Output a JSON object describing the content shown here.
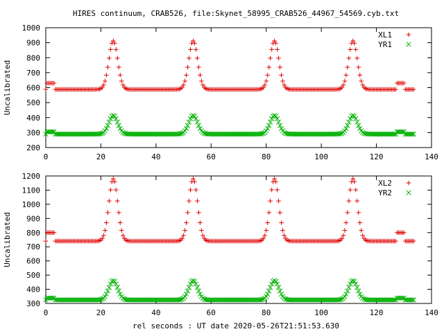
{
  "title": "HIRES continuum, CRAB526, file:Skynet_58995_CRAB526_44967_54569.cyb.txt",
  "xlabel": "rel seconds : UT date 2020-05-26T21:51:53.630",
  "colors": {
    "series1": "#e00000",
    "series2": "#00b000",
    "axis": "#000000"
  },
  "chart_data": [
    {
      "type": "scatter",
      "title": "HIRES continuum, CRAB526, file:Skynet_58995_CRAB526_44967_54569.cyb.txt",
      "ylabel": "Uncalibrated",
      "xlim": [
        0,
        140
      ],
      "ylim": [
        200,
        1000
      ],
      "xticks": [
        0,
        20,
        40,
        60,
        80,
        100,
        120,
        140
      ],
      "yticks": [
        200,
        300,
        400,
        500,
        600,
        700,
        800,
        900,
        1000
      ],
      "legend_position": "top-right",
      "grid": false,
      "x_range": [
        0,
        133.5
      ],
      "x_step": 0.5,
      "peak_centers": [
        24.5,
        53.5,
        83,
        111.5
      ],
      "peak_width_sigma": 1.6,
      "calibration_segments": [
        [
          0.5,
          3
        ],
        [
          127.5,
          130
        ]
      ],
      "series": [
        {
          "name": "XL1",
          "marker": "+",
          "baseline": 588,
          "peak": 912,
          "cal_level": 630
        },
        {
          "name": "YR1",
          "marker": "x",
          "baseline": 290,
          "peak": 415,
          "cal_level": 305
        }
      ]
    },
    {
      "type": "scatter",
      "xlabel": "rel seconds : UT date 2020-05-26T21:51:53.630",
      "ylabel": "Uncalibrated",
      "xlim": [
        0,
        140
      ],
      "ylim": [
        300,
        1200
      ],
      "xticks": [
        0,
        20,
        40,
        60,
        80,
        100,
        120,
        140
      ],
      "yticks": [
        300,
        400,
        500,
        600,
        700,
        800,
        900,
        1000,
        1100,
        1200
      ],
      "legend_position": "top-right",
      "grid": false,
      "x_range": [
        0,
        133.5
      ],
      "x_step": 0.5,
      "peak_centers": [
        24.5,
        53.5,
        83,
        111.5
      ],
      "peak_width_sigma": 1.6,
      "calibration_segments": [
        [
          0.5,
          3
        ],
        [
          127.5,
          130
        ]
      ],
      "series": [
        {
          "name": "XL2",
          "marker": "+",
          "baseline": 740,
          "peak": 1180,
          "cal_level": 800
        },
        {
          "name": "YR2",
          "marker": "x",
          "baseline": 325,
          "peak": 462,
          "cal_level": 338
        }
      ]
    }
  ]
}
